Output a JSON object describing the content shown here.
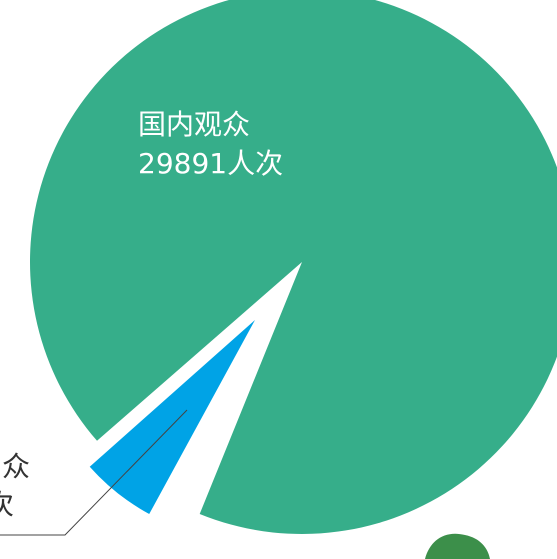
{
  "chart_data": {
    "type": "pie",
    "categories": [
      "国内观众",
      "众"
    ],
    "values": [
      29891,
      1740
    ],
    "value_labels": [
      "29891人次",
      "次"
    ],
    "colors": [
      "#36ae8a",
      "#00a3e6"
    ]
  }
}
